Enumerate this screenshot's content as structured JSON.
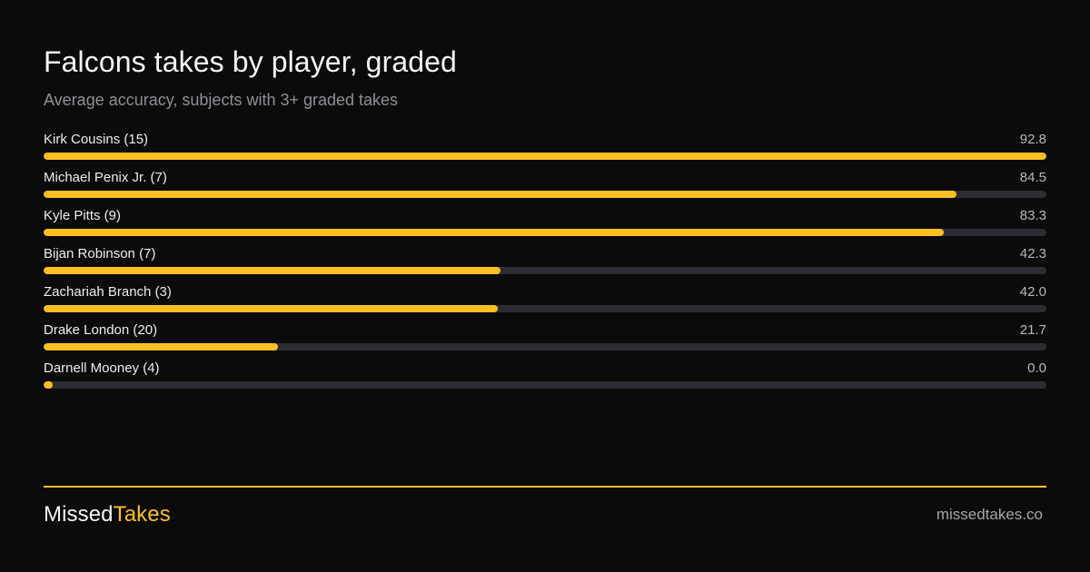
{
  "colors": {
    "accent": "#fbbf24",
    "track": "#2d2c33",
    "background": "#0b0b0b"
  },
  "brand": {
    "part1": "Missed",
    "part2": "Takes"
  },
  "site": "missedtakes.co",
  "chart_data": {
    "type": "bar",
    "orientation": "horizontal",
    "title": "Falcons takes by player, graded",
    "subtitle": "Average accuracy, subjects with 3+ graded takes",
    "categories": [
      "Kirk Cousins (15)",
      "Michael Penix Jr. (7)",
      "Kyle Pitts (9)",
      "Bijan Robinson (7)",
      "Zachariah Branch (3)",
      "Drake London (20)",
      "Darnell Mooney (4)"
    ],
    "values": [
      92.8,
      84.5,
      83.3,
      42.3,
      42.0,
      21.7,
      0.0
    ],
    "value_labels": [
      "92.8",
      "84.5",
      "83.3",
      "42.3",
      "42.0",
      "21.7",
      "0.0"
    ],
    "xlim": [
      0,
      92.8
    ],
    "grid": false,
    "legend": "none"
  }
}
